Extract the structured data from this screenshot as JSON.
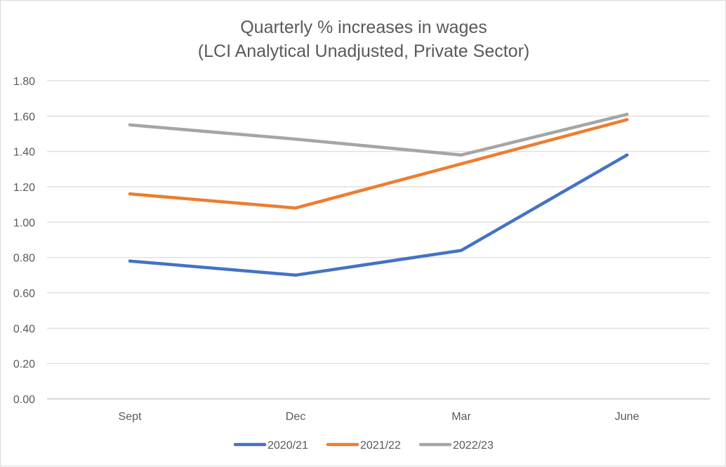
{
  "chart_data": {
    "type": "line",
    "title": "Quarterly % increases in wages",
    "subtitle": "(LCI Analytical Unadjusted, Private Sector)",
    "categories": [
      "Sept",
      "Dec",
      "Mar",
      "June"
    ],
    "ylim": [
      0,
      1.8
    ],
    "yticks": [
      "0.00",
      "0.20",
      "0.40",
      "0.60",
      "0.80",
      "1.00",
      "1.20",
      "1.40",
      "1.60",
      "1.80"
    ],
    "ytick_values": [
      0,
      0.2,
      0.4,
      0.6,
      0.8,
      1.0,
      1.2,
      1.4,
      1.6,
      1.8
    ],
    "xlabel": "",
    "ylabel": "",
    "grid": true,
    "legend_position": "bottom",
    "series": [
      {
        "name": "2020/21",
        "color": "#4472C4",
        "values": [
          0.78,
          0.7,
          0.84,
          1.38
        ]
      },
      {
        "name": "2021/22",
        "color": "#ED7D31",
        "values": [
          1.16,
          1.08,
          1.33,
          1.58
        ]
      },
      {
        "name": "2022/23",
        "color": "#A5A5A5",
        "values": [
          1.55,
          1.47,
          1.38,
          1.61
        ]
      }
    ]
  }
}
